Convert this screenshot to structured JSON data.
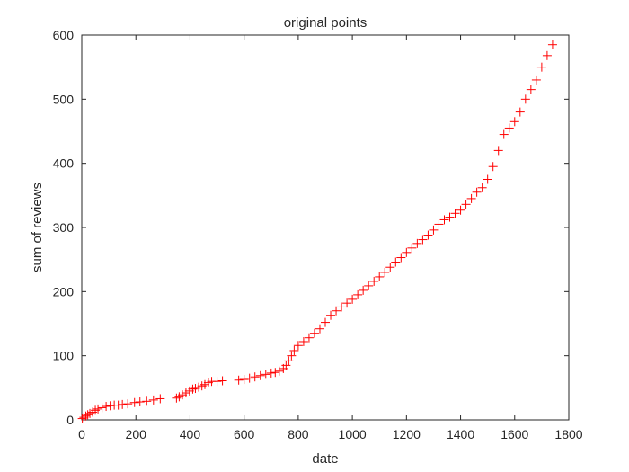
{
  "chart_data": {
    "type": "scatter",
    "title": "original points",
    "xlabel": "date",
    "ylabel": "sum of reviews",
    "xlim": [
      0,
      1800
    ],
    "ylim": [
      0,
      600
    ],
    "xticks": [
      0,
      200,
      400,
      600,
      800,
      1000,
      1200,
      1400,
      1600,
      1800
    ],
    "yticks": [
      0,
      100,
      200,
      300,
      400,
      500,
      600
    ],
    "grid": false,
    "marker": "+",
    "marker_color": "#ff0000",
    "series": [
      {
        "x": [
          2,
          8,
          15,
          22,
          30,
          40,
          50,
          60,
          75,
          90,
          105,
          120,
          135,
          150,
          170,
          195,
          215,
          240,
          265,
          290,
          350,
          360,
          372,
          385,
          398,
          410,
          420,
          432,
          444,
          455,
          468,
          480,
          500,
          520,
          580,
          600,
          620,
          640,
          660,
          680,
          700,
          715,
          730,
          745,
          755,
          765,
          775,
          785,
          800,
          820,
          840,
          860,
          880,
          900,
          920,
          940,
          960,
          980,
          1000,
          1020,
          1040,
          1060,
          1080,
          1100,
          1120,
          1140,
          1160,
          1180,
          1200,
          1220,
          1240,
          1260,
          1280,
          1300,
          1320,
          1340,
          1360,
          1380,
          1400,
          1420,
          1440,
          1460,
          1480,
          1500,
          1520,
          1540,
          1560,
          1580,
          1600,
          1620,
          1640,
          1660,
          1680,
          1700,
          1720,
          1740
        ],
        "y": [
          2,
          4,
          6,
          8,
          10,
          12,
          15,
          17,
          19,
          21,
          22,
          23,
          23,
          24,
          25,
          27,
          28,
          29,
          31,
          33,
          34,
          36,
          39,
          42,
          45,
          48,
          49,
          51,
          53,
          55,
          58,
          60,
          60,
          61,
          62,
          63,
          65,
          67,
          69,
          71,
          73,
          74,
          76,
          80,
          85,
          92,
          100,
          108,
          116,
          122,
          128,
          135,
          142,
          152,
          163,
          170,
          176,
          182,
          188,
          195,
          202,
          209,
          216,
          223,
          230,
          238,
          246,
          253,
          261,
          268,
          275,
          281,
          288,
          296,
          305,
          312,
          316,
          322,
          327,
          336,
          345,
          355,
          362,
          375,
          395,
          420,
          445,
          455,
          465,
          480,
          500,
          515,
          530,
          550,
          568,
          585
        ]
      }
    ]
  }
}
